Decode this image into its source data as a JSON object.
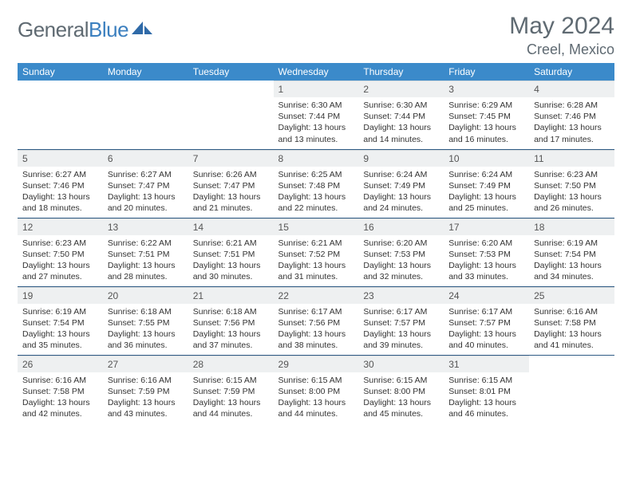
{
  "brand": {
    "name_part1": "General",
    "name_part2": "Blue"
  },
  "title": {
    "month": "May 2024",
    "location": "Creel, Mexico"
  },
  "colors": {
    "header_bg": "#3b8aca",
    "rule": "#2f5b85",
    "muted": "#5f6a72",
    "daynum_bg": "#eef0f1"
  },
  "weekdays": [
    "Sunday",
    "Monday",
    "Tuesday",
    "Wednesday",
    "Thursday",
    "Friday",
    "Saturday"
  ],
  "layout": {
    "first_weekday_index": 3,
    "days_in_month": 31
  },
  "days": {
    "1": {
      "sunrise": "6:30 AM",
      "sunset": "7:44 PM",
      "daylight": "13 hours and 13 minutes."
    },
    "2": {
      "sunrise": "6:30 AM",
      "sunset": "7:44 PM",
      "daylight": "13 hours and 14 minutes."
    },
    "3": {
      "sunrise": "6:29 AM",
      "sunset": "7:45 PM",
      "daylight": "13 hours and 16 minutes."
    },
    "4": {
      "sunrise": "6:28 AM",
      "sunset": "7:46 PM",
      "daylight": "13 hours and 17 minutes."
    },
    "5": {
      "sunrise": "6:27 AM",
      "sunset": "7:46 PM",
      "daylight": "13 hours and 18 minutes."
    },
    "6": {
      "sunrise": "6:27 AM",
      "sunset": "7:47 PM",
      "daylight": "13 hours and 20 minutes."
    },
    "7": {
      "sunrise": "6:26 AM",
      "sunset": "7:47 PM",
      "daylight": "13 hours and 21 minutes."
    },
    "8": {
      "sunrise": "6:25 AM",
      "sunset": "7:48 PM",
      "daylight": "13 hours and 22 minutes."
    },
    "9": {
      "sunrise": "6:24 AM",
      "sunset": "7:49 PM",
      "daylight": "13 hours and 24 minutes."
    },
    "10": {
      "sunrise": "6:24 AM",
      "sunset": "7:49 PM",
      "daylight": "13 hours and 25 minutes."
    },
    "11": {
      "sunrise": "6:23 AM",
      "sunset": "7:50 PM",
      "daylight": "13 hours and 26 minutes."
    },
    "12": {
      "sunrise": "6:23 AM",
      "sunset": "7:50 PM",
      "daylight": "13 hours and 27 minutes."
    },
    "13": {
      "sunrise": "6:22 AM",
      "sunset": "7:51 PM",
      "daylight": "13 hours and 28 minutes."
    },
    "14": {
      "sunrise": "6:21 AM",
      "sunset": "7:51 PM",
      "daylight": "13 hours and 30 minutes."
    },
    "15": {
      "sunrise": "6:21 AM",
      "sunset": "7:52 PM",
      "daylight": "13 hours and 31 minutes."
    },
    "16": {
      "sunrise": "6:20 AM",
      "sunset": "7:53 PM",
      "daylight": "13 hours and 32 minutes."
    },
    "17": {
      "sunrise": "6:20 AM",
      "sunset": "7:53 PM",
      "daylight": "13 hours and 33 minutes."
    },
    "18": {
      "sunrise": "6:19 AM",
      "sunset": "7:54 PM",
      "daylight": "13 hours and 34 minutes."
    },
    "19": {
      "sunrise": "6:19 AM",
      "sunset": "7:54 PM",
      "daylight": "13 hours and 35 minutes."
    },
    "20": {
      "sunrise": "6:18 AM",
      "sunset": "7:55 PM",
      "daylight": "13 hours and 36 minutes."
    },
    "21": {
      "sunrise": "6:18 AM",
      "sunset": "7:56 PM",
      "daylight": "13 hours and 37 minutes."
    },
    "22": {
      "sunrise": "6:17 AM",
      "sunset": "7:56 PM",
      "daylight": "13 hours and 38 minutes."
    },
    "23": {
      "sunrise": "6:17 AM",
      "sunset": "7:57 PM",
      "daylight": "13 hours and 39 minutes."
    },
    "24": {
      "sunrise": "6:17 AM",
      "sunset": "7:57 PM",
      "daylight": "13 hours and 40 minutes."
    },
    "25": {
      "sunrise": "6:16 AM",
      "sunset": "7:58 PM",
      "daylight": "13 hours and 41 minutes."
    },
    "26": {
      "sunrise": "6:16 AM",
      "sunset": "7:58 PM",
      "daylight": "13 hours and 42 minutes."
    },
    "27": {
      "sunrise": "6:16 AM",
      "sunset": "7:59 PM",
      "daylight": "13 hours and 43 minutes."
    },
    "28": {
      "sunrise": "6:15 AM",
      "sunset": "7:59 PM",
      "daylight": "13 hours and 44 minutes."
    },
    "29": {
      "sunrise": "6:15 AM",
      "sunset": "8:00 PM",
      "daylight": "13 hours and 44 minutes."
    },
    "30": {
      "sunrise": "6:15 AM",
      "sunset": "8:00 PM",
      "daylight": "13 hours and 45 minutes."
    },
    "31": {
      "sunrise": "6:15 AM",
      "sunset": "8:01 PM",
      "daylight": "13 hours and 46 minutes."
    }
  },
  "labels": {
    "sunrise": "Sunrise:",
    "sunset": "Sunset:",
    "daylight": "Daylight:"
  }
}
